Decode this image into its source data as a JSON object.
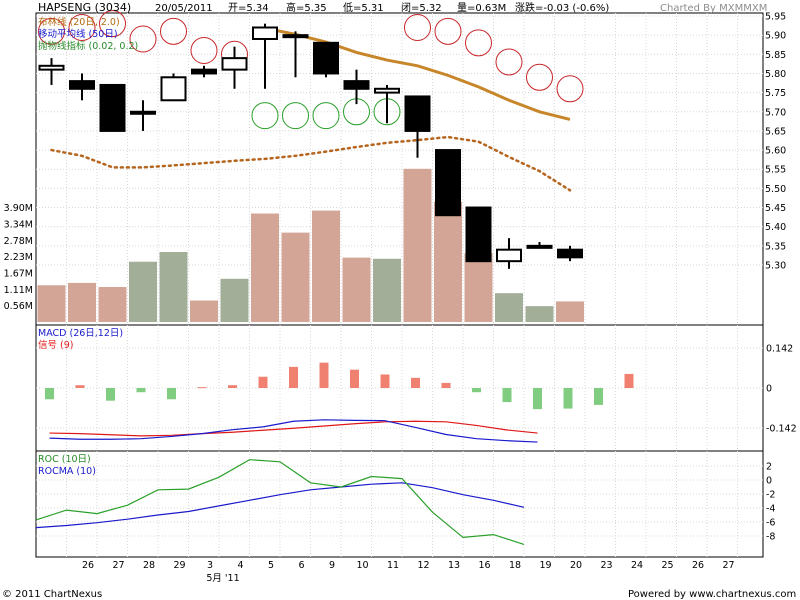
{
  "header": {
    "symbol": "HAPSENG (3034)",
    "date": "20/05/2011",
    "open": "开=5.34",
    "high": "高=5.35",
    "low": "低=5.31",
    "close": "闭=5.32",
    "volume": "量=0.63M",
    "change": "涨跌=-0.03 (-0.6%)",
    "charted_by": "Charted By MXMMXM"
  },
  "legend": {
    "bollinger": "布林线 (20日, 2.0)",
    "ma": "移动平均线 (50日)",
    "sar": "抛物线指标 (0.02, 0.2)"
  },
  "macd_legend": {
    "macd": "MACD (26日,12日)",
    "signal": "信号 (9)"
  },
  "roc_legend": {
    "roc": "ROC (10日)",
    "rocma": "ROCMA (10)"
  },
  "footer": {
    "left": "© 2011 ChartNexus",
    "right": "Powered by www.chartnexus.com"
  },
  "colors": {
    "bollinger": "#c8862a",
    "sar_red": "#c8262a",
    "sar_green": "#2aa02a",
    "vol_up": "#a3ae98",
    "vol_down": "#d3a597",
    "macd_line": "#1a1acc",
    "signal_line": "#e01818",
    "roc_line": "#2aa02a",
    "rocma_line": "#1a1acc"
  },
  "chart_data": [
    {
      "type": "candlestick",
      "x_labels": [
        "26",
        "27",
        "28",
        "29",
        "3",
        "4",
        "5",
        "6",
        "9",
        "10",
        "11",
        "12",
        "13",
        "16",
        "18",
        "19",
        "20",
        "23",
        "24",
        "25",
        "26",
        "27"
      ],
      "x_sublabel": "5月 '11",
      "price_axis": {
        "ticks": [
          "5.95",
          "5.90",
          "5.85",
          "5.80",
          "5.75",
          "5.70",
          "5.65",
          "5.60",
          "5.55",
          "5.50",
          "5.45",
          "5.40",
          "5.35",
          "5.30"
        ],
        "ylim": [
          5.26,
          5.96
        ]
      },
      "volume_axis": {
        "ticks": [
          "3.90M",
          "3.34M",
          "2.78M",
          "2.23M",
          "1.67M",
          "1.11M",
          "0.56M"
        ]
      },
      "candles": [
        {
          "o": 5.81,
          "h": 5.84,
          "l": 5.77,
          "c": 5.82
        },
        {
          "o": 5.78,
          "h": 5.8,
          "l": 5.73,
          "c": 5.76
        },
        {
          "o": 5.77,
          "h": 5.77,
          "l": 5.65,
          "c": 5.65
        },
        {
          "o": 5.7,
          "h": 5.73,
          "l": 5.65,
          "c": 5.7
        },
        {
          "o": 5.73,
          "h": 5.8,
          "l": 5.73,
          "c": 5.79
        },
        {
          "o": 5.81,
          "h": 5.82,
          "l": 5.79,
          "c": 5.8
        },
        {
          "o": 5.81,
          "h": 5.87,
          "l": 5.76,
          "c": 5.84
        },
        {
          "o": 5.89,
          "h": 5.93,
          "l": 5.76,
          "c": 5.92
        },
        {
          "o": 5.9,
          "h": 5.91,
          "l": 5.79,
          "c": 5.9
        },
        {
          "o": 5.88,
          "h": 5.88,
          "l": 5.79,
          "c": 5.8
        },
        {
          "o": 5.78,
          "h": 5.81,
          "l": 5.72,
          "c": 5.76
        },
        {
          "o": 5.75,
          "h": 5.77,
          "l": 5.67,
          "c": 5.76
        },
        {
          "o": 5.74,
          "h": 5.74,
          "l": 5.58,
          "c": 5.65
        },
        {
          "o": 5.6,
          "h": 5.6,
          "l": 5.43,
          "c": 5.43
        },
        {
          "o": 5.45,
          "h": 5.45,
          "l": 5.31,
          "c": 5.31
        },
        {
          "o": 5.31,
          "h": 5.37,
          "l": 5.29,
          "c": 5.34
        },
        {
          "o": 5.35,
          "h": 5.36,
          "l": 5.35,
          "c": 5.35
        },
        {
          "o": 5.34,
          "h": 5.35,
          "l": 5.31,
          "c": 5.32
        }
      ],
      "volume_m": [
        1.25,
        1.33,
        1.19,
        2.05,
        2.38,
        0.73,
        1.47,
        3.69,
        3.04,
        3.79,
        2.19,
        2.15,
        5.21,
        4.09,
        2.34,
        0.98,
        0.54,
        0.7
      ],
      "volume_up": [
        false,
        false,
        false,
        true,
        true,
        false,
        true,
        false,
        false,
        false,
        false,
        true,
        false,
        false,
        false,
        true,
        true,
        false
      ],
      "bollinger_upper": [
        null,
        null,
        null,
        null,
        null,
        null,
        null,
        5.918,
        5.902,
        5.882,
        5.855,
        5.835,
        5.82,
        5.795,
        5.765,
        5.73,
        5.7,
        5.68
      ],
      "ma50": [
        5.6,
        5.585,
        5.555,
        5.555,
        5.56,
        5.566,
        5.572,
        5.577,
        5.585,
        5.596,
        5.608,
        5.619,
        5.626,
        5.634,
        5.622,
        5.582,
        5.545,
        5.495
      ],
      "sar": [
        {
          "v": 5.91,
          "c": "red"
        },
        {
          "v": 5.92,
          "c": "red"
        },
        {
          "v": 5.93,
          "c": "red"
        },
        {
          "v": 5.89,
          "c": "red"
        },
        {
          "v": 5.91,
          "c": "red"
        },
        {
          "v": 5.86,
          "c": "red"
        },
        {
          "v": 5.85,
          "c": "red"
        },
        {
          "v": 5.69,
          "c": "green"
        },
        {
          "v": 5.69,
          "c": "green"
        },
        {
          "v": 5.69,
          "c": "green"
        },
        {
          "v": 5.7,
          "c": "green"
        },
        {
          "v": 5.7,
          "c": "green"
        },
        {
          "v": 5.92,
          "c": "red"
        },
        {
          "v": 5.91,
          "c": "red"
        },
        {
          "v": 5.88,
          "c": "red"
        },
        {
          "v": 5.83,
          "c": "red"
        },
        {
          "v": 5.79,
          "c": "red"
        },
        {
          "v": 5.76,
          "c": "red"
        }
      ]
    },
    {
      "type": "bar+line",
      "name": "MACD",
      "y_ticks": [
        "0.142",
        "0",
        "-0.142"
      ],
      "ylim": [
        -0.22,
        0.21
      ],
      "histogram": [
        -0.04,
        0.01,
        -0.045,
        -0.015,
        -0.04,
        0.003,
        0.01,
        0.04,
        0.075,
        0.09,
        0.065,
        0.048,
        0.036,
        0.018,
        -0.015,
        -0.05,
        -0.075,
        -0.073,
        -0.06,
        0.05
      ],
      "macd": [
        -0.178,
        -0.182,
        -0.182,
        -0.18,
        -0.172,
        -0.162,
        -0.148,
        -0.138,
        -0.118,
        -0.113,
        -0.115,
        -0.116,
        -0.14,
        -0.165,
        -0.18,
        -0.187,
        -0.192
      ],
      "signal": [
        -0.16,
        -0.162,
        -0.166,
        -0.17,
        -0.168,
        -0.162,
        -0.157,
        -0.15,
        -0.143,
        -0.135,
        -0.127,
        -0.12,
        -0.118,
        -0.12,
        -0.133,
        -0.149,
        -0.16
      ]
    },
    {
      "type": "line",
      "name": "ROC",
      "y_ticks": [
        "2",
        "0",
        "-2",
        "-4",
        "-6",
        "-8"
      ],
      "ylim": [
        -10,
        3
      ],
      "roc": [
        -5.7,
        -4.3,
        -4.8,
        -3.6,
        -1.4,
        -1.3,
        0.4,
        2.9,
        2.6,
        -0.4,
        -1.0,
        0.5,
        0.2,
        -4.6,
        -8.2,
        -7.8,
        -9.2
      ],
      "rocma": [
        -6.8,
        -6.5,
        -6.1,
        -5.6,
        -5.0,
        -4.5,
        -3.7,
        -2.9,
        -2.1,
        -1.4,
        -1.0,
        -0.6,
        -0.4,
        -1.1,
        -2.1,
        -2.9,
        -3.9
      ]
    }
  ]
}
